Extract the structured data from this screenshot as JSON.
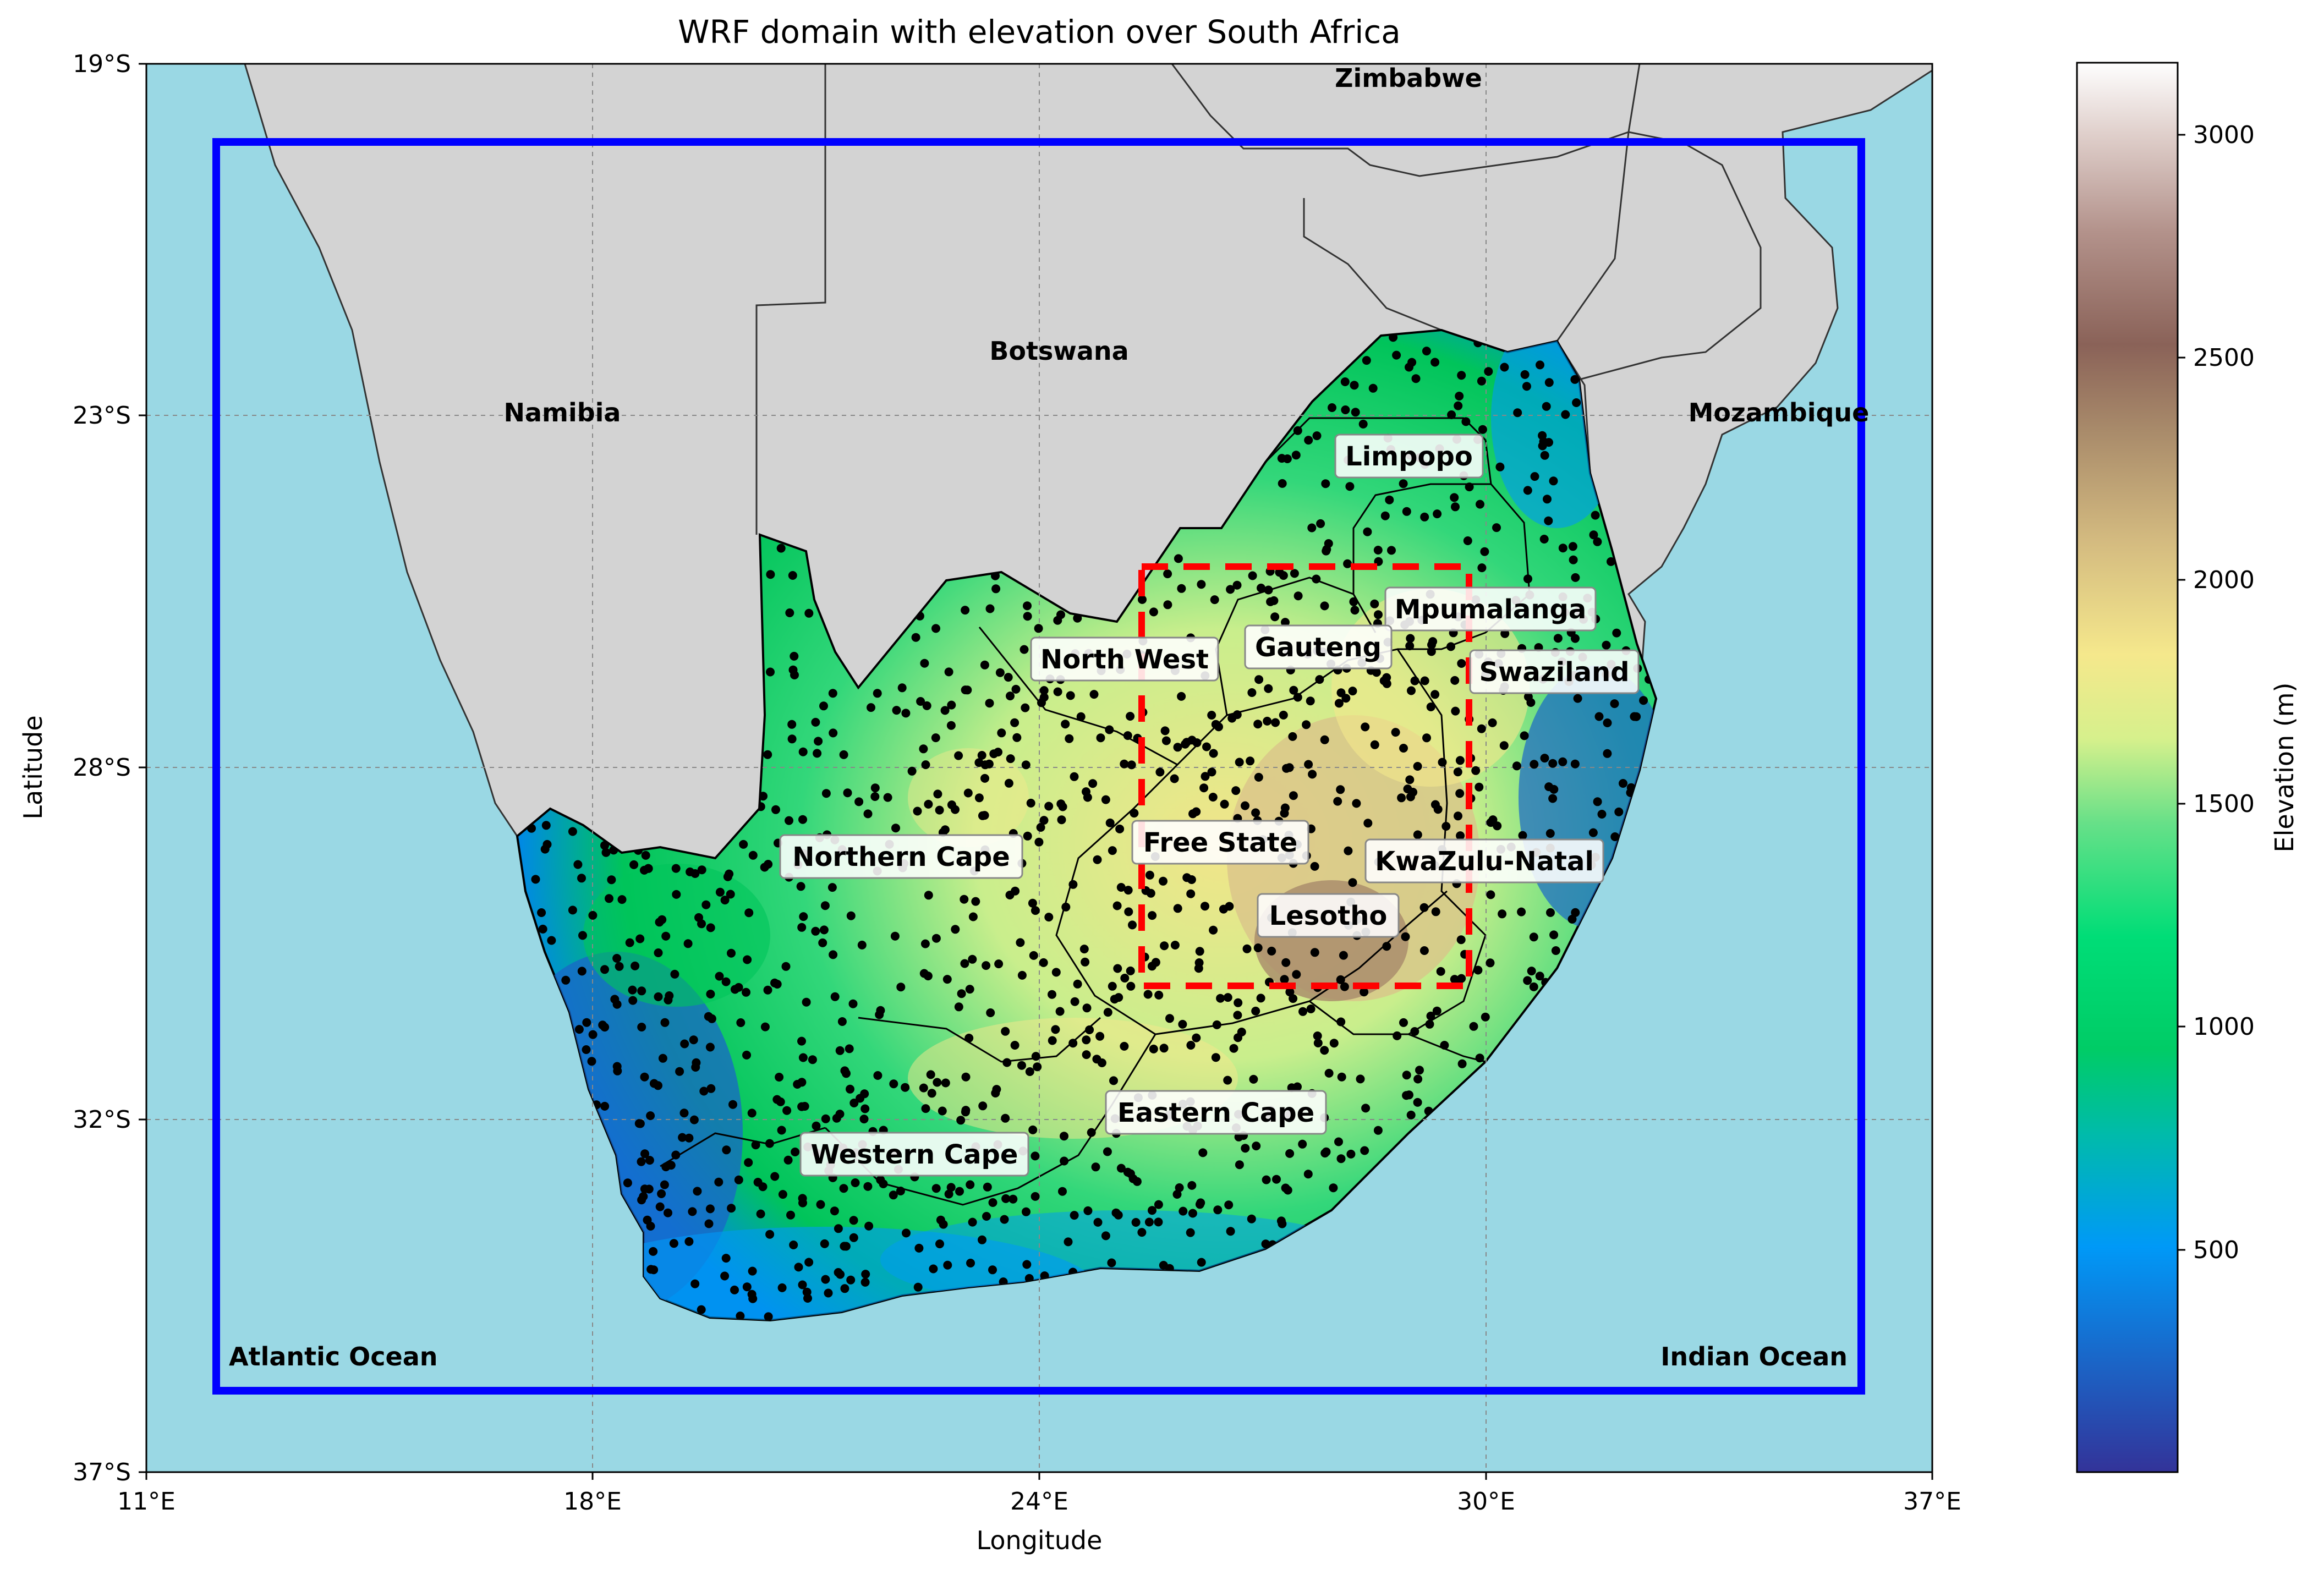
{
  "title": "WRF domain with elevation over South Africa",
  "axes": {
    "xlabel": "Longitude",
    "ylabel": "Latitude",
    "xticks": [
      "11°E",
      "18°E",
      "24°E",
      "30°E",
      "37°E"
    ],
    "yticks": [
      "19°S",
      "23°S",
      "28°S",
      "32°S",
      "37°S"
    ]
  },
  "colorbar": {
    "label": "Elevation (m)",
    "ticks": [
      "500",
      "1000",
      "1500",
      "2000",
      "2500",
      "3000"
    ]
  },
  "countries": [
    "Zimbabwe",
    "Botswana",
    "Namibia",
    "Mozambique"
  ],
  "oceans": [
    "Atlantic Ocean",
    "Indian Ocean"
  ],
  "provinces": [
    "Limpopo",
    "Mpumalanga",
    "Gauteng",
    "North West",
    "Swaziland",
    "Free State",
    "KwaZulu-Natal",
    "Lesotho",
    "Northern Cape",
    "Eastern Cape",
    "Western Cape"
  ],
  "colors": {
    "ocean": "#9ad8e4",
    "land": "#d3d3d3",
    "outer_domain": "#0000ff",
    "inner_domain": "#ff0000",
    "stations": "#000000"
  },
  "chart_data": {
    "type": "map",
    "xlim": [
      11,
      37
    ],
    "ylim": [
      -37,
      -19
    ],
    "x_ticks_deg": [
      11,
      18,
      24,
      30,
      37
    ],
    "y_ticks_deg": [
      -19,
      -23,
      -28,
      -32,
      -37
    ],
    "colormap": "terrain",
    "colorbar_range_m": [
      0,
      3150
    ],
    "outer_domain_box": {
      "lon": [
        12,
        36
      ],
      "lat": [
        -35.8,
        -20.1
      ]
    },
    "inner_domain_box": {
      "lon": [
        25.5,
        29.8
      ],
      "lat": [
        -30.9,
        -25.3
      ]
    },
    "grid": true
  }
}
